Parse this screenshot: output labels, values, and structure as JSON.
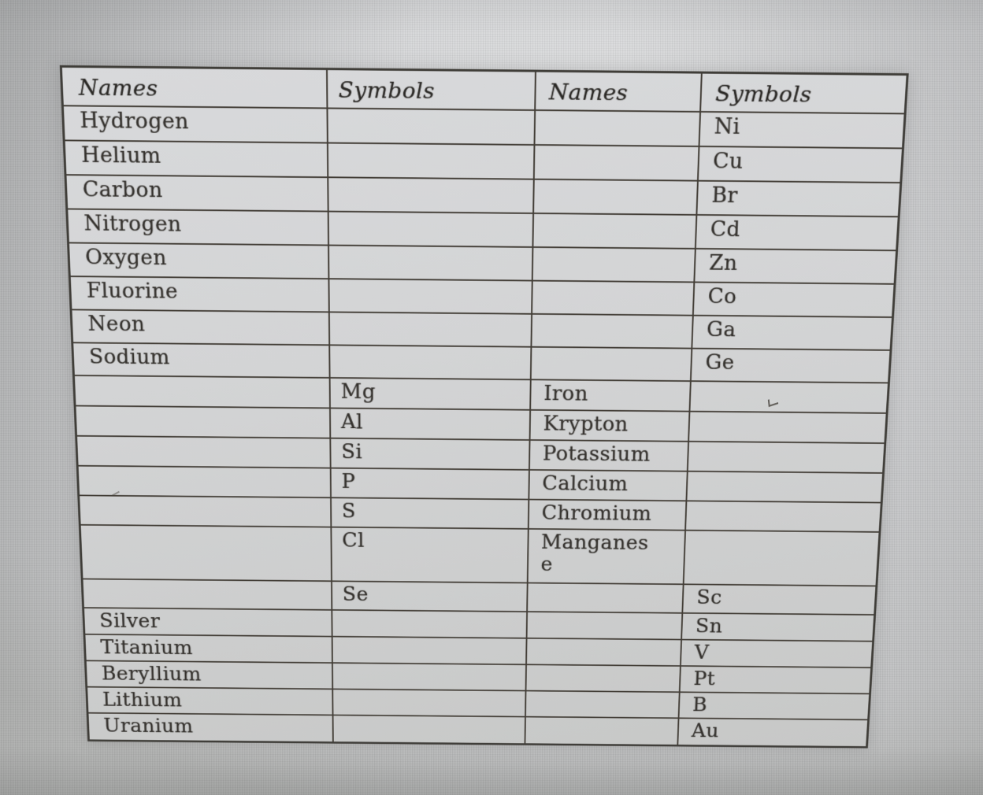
{
  "document": {
    "columns": [
      "Names",
      "Symbols",
      "Names",
      "Symbols"
    ],
    "rows": [
      [
        "Hydrogen",
        "",
        "",
        "Ni"
      ],
      [
        "Helium",
        "",
        "",
        "Cu"
      ],
      [
        "Carbon",
        "",
        "",
        "Br"
      ],
      [
        "Nitrogen",
        "",
        "",
        "Cd"
      ],
      [
        "Oxygen",
        "",
        "",
        "Zn"
      ],
      [
        "Fluorine",
        "",
        "",
        "Co"
      ],
      [
        "Neon",
        "",
        "",
        "Ga"
      ],
      [
        "Sodium",
        "",
        "",
        "Ge"
      ],
      [
        "",
        "Mg",
        "Iron",
        ""
      ],
      [
        "",
        "Al",
        "Krypton",
        ""
      ],
      [
        "",
        "Si",
        "Potassium",
        ""
      ],
      [
        "",
        "P",
        "Calcium",
        ""
      ],
      [
        "",
        "S",
        "Chromium",
        ""
      ],
      [
        "",
        "Cl",
        "Manganes\ne",
        ""
      ],
      [
        "",
        "Se",
        "",
        "Sc"
      ],
      [
        "Silver",
        "",
        "",
        "Sn"
      ],
      [
        "Titanium",
        "",
        "",
        "V"
      ],
      [
        "Beryllium",
        "",
        "",
        "Pt"
      ],
      [
        "Lithium",
        "",
        "",
        "B"
      ],
      [
        "Uranium",
        "",
        "",
        "Au"
      ]
    ]
  },
  "colors": {
    "ink": "#35322e",
    "ink_dark": "#2b2926",
    "line": "#423d36",
    "paper": "#d4d5d6",
    "backdrop": "#c9cacb"
  }
}
